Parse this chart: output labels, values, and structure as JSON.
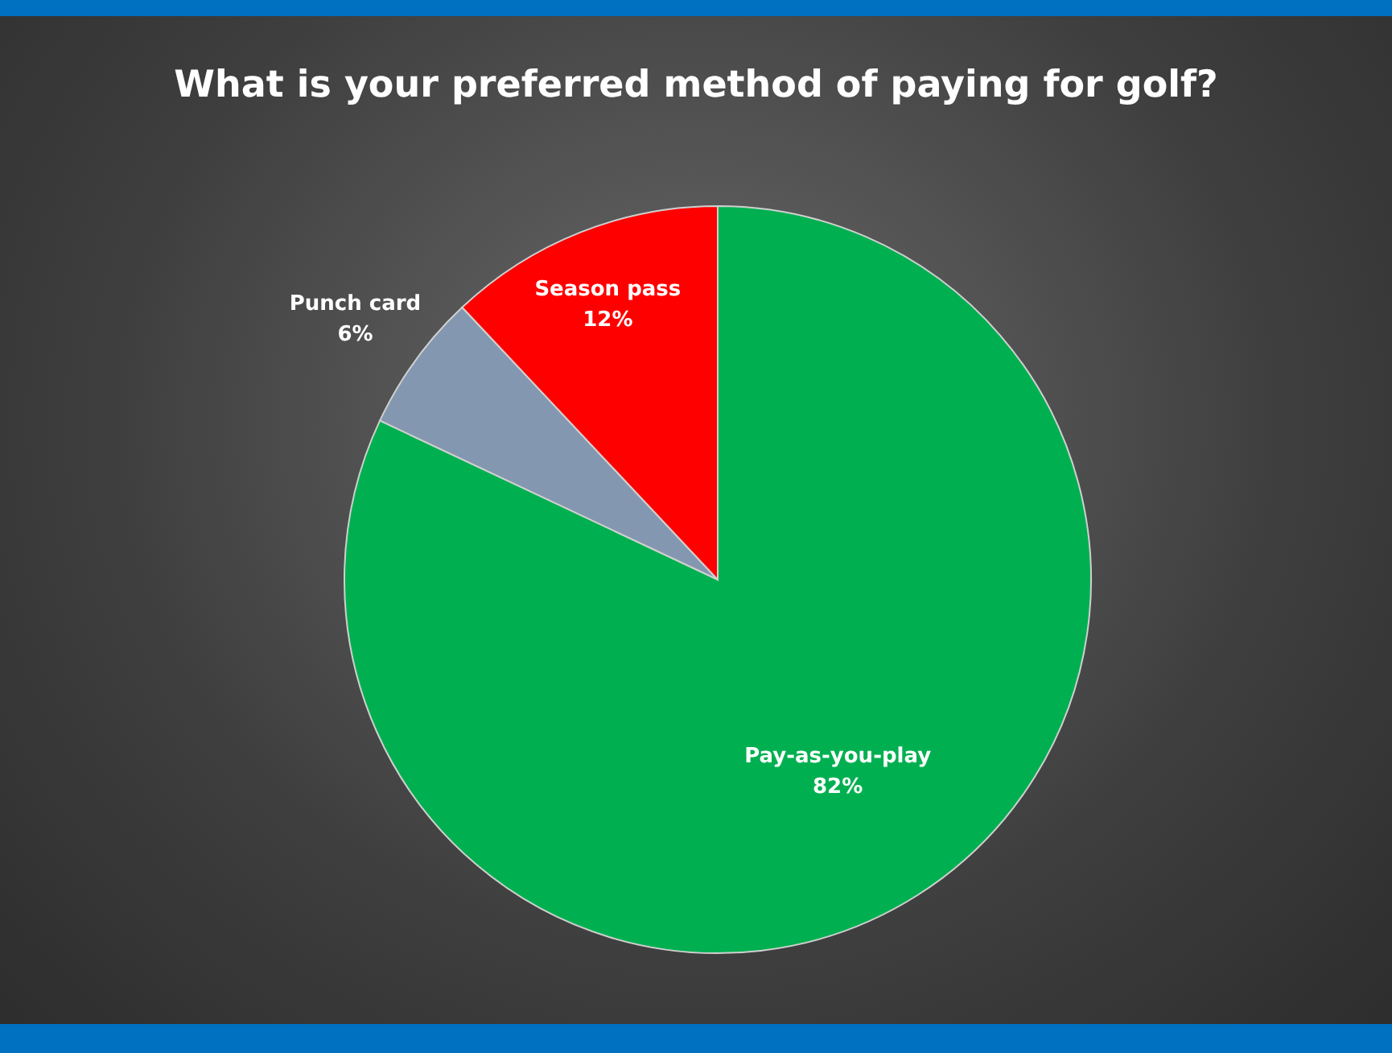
{
  "chart_data": {
    "type": "pie",
    "title": "What is your preferred method of paying for golf?",
    "categories": [
      "Pay-as-you-play",
      "Punch card",
      "Season pass"
    ],
    "values": [
      82,
      6,
      12
    ],
    "colors": [
      "#00b050",
      "#8497b0",
      "#ff0000"
    ],
    "value_labels": [
      "82%",
      "6%",
      "12%"
    ],
    "legend": false
  }
}
